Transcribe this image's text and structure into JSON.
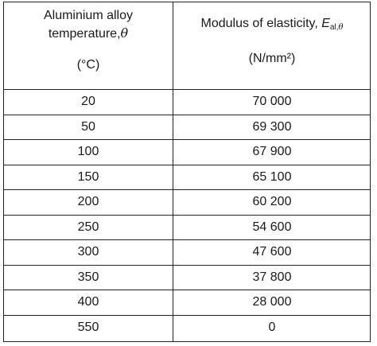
{
  "header": {
    "col1_line1": "Aluminium alloy",
    "col1_line2": "temperature,",
    "col1_symbol": "θ",
    "col1_unit": "(°C)",
    "col2_label": "Modulus of elasticity, ",
    "col2_symbol": "E",
    "col2_sub": "al,",
    "col2_sub_symbol": "θ",
    "col2_unit": "(N/mm²)"
  },
  "rows": [
    {
      "temp": "20",
      "modulus": "70 000"
    },
    {
      "temp": "50",
      "modulus": "69 300"
    },
    {
      "temp": "100",
      "modulus": "67 900"
    },
    {
      "temp": "150",
      "modulus": "65 100"
    },
    {
      "temp": "200",
      "modulus": "60 200"
    },
    {
      "temp": "250",
      "modulus": "54 600"
    },
    {
      "temp": "300",
      "modulus": "47 600"
    },
    {
      "temp": "350",
      "modulus": "37 800"
    },
    {
      "temp": "400",
      "modulus": "28 000"
    },
    {
      "temp": "550",
      "modulus": "0"
    }
  ]
}
